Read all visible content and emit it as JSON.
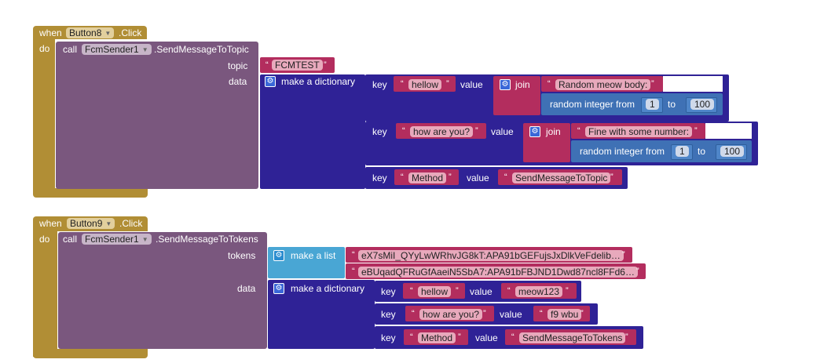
{
  "block1": {
    "when": "when",
    "component": "Button8",
    "event": ".Click",
    "do": "do",
    "call": "call",
    "sender": "FcmSender1",
    "method": ".SendMessageToTopic",
    "topic_label": "topic",
    "topic_value": "FCMTEST",
    "data_label": "data",
    "dict_label": "make a dictionary",
    "pairs": [
      {
        "key_label": "key",
        "key": "hellow",
        "value_label": "value",
        "join": "join",
        "join_text": "Random meow body:",
        "rand": "random integer from",
        "from": "1",
        "to_label": "to",
        "to": "100"
      },
      {
        "key_label": "key",
        "key": "how are you?",
        "value_label": "value",
        "join": "join",
        "join_text": "Fine with some number:",
        "rand": "random integer from",
        "from": "1",
        "to_label": "to",
        "to": "100"
      },
      {
        "key_label": "key",
        "key": "Method",
        "value_label": "value",
        "value": "SendMessageToTopic"
      }
    ]
  },
  "block2": {
    "when": "when",
    "component": "Button9",
    "event": ".Click",
    "do": "do",
    "call": "call",
    "sender": "FcmSender1",
    "method": ".SendMessageToTokens",
    "tokens_label": "tokens",
    "list_label": "make a list",
    "tokens": [
      "eX7sMiI_QYyLwWRhvJG8kT:APA91bGEFujsJxDlkVeFdelib…",
      "eBUqadQFRuGfAaeiN5SbA7:APA91bFBJND1Dwd87ncl8FFd6…"
    ],
    "data_label": "data",
    "dict_label": "make a dictionary",
    "pairs": [
      {
        "key_label": "key",
        "key": "hellow",
        "value_label": "value",
        "value": "meow123"
      },
      {
        "key_label": "key",
        "key": "how are you?",
        "value_label": "value",
        "value": "f9 wbu"
      },
      {
        "key_label": "key",
        "key": "Method",
        "value_label": "value",
        "value": "SendMessageToTokens"
      }
    ]
  },
  "icons": {
    "gear": "gear-icon",
    "dropdown": "chevron-down-icon"
  },
  "colors": {
    "event": "#b18e35",
    "call": "#7a577e",
    "dict": "#2f2296",
    "text": "#b32d5e",
    "list": "#49a6d4",
    "math": "#3f71b5"
  }
}
